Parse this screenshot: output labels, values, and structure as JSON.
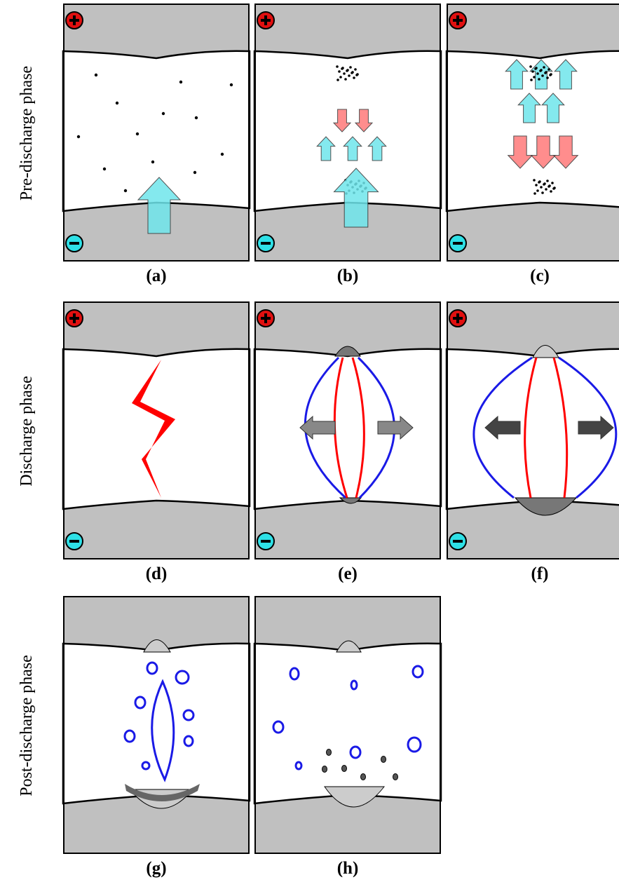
{
  "rows": [
    "Pre-discharge phase",
    "Discharge phase",
    "Post-discharge phase"
  ],
  "panels": [
    "(a)",
    "(b)",
    "(c)",
    "(d)",
    "(e)",
    "(f)",
    "(g)",
    "(h)"
  ]
}
